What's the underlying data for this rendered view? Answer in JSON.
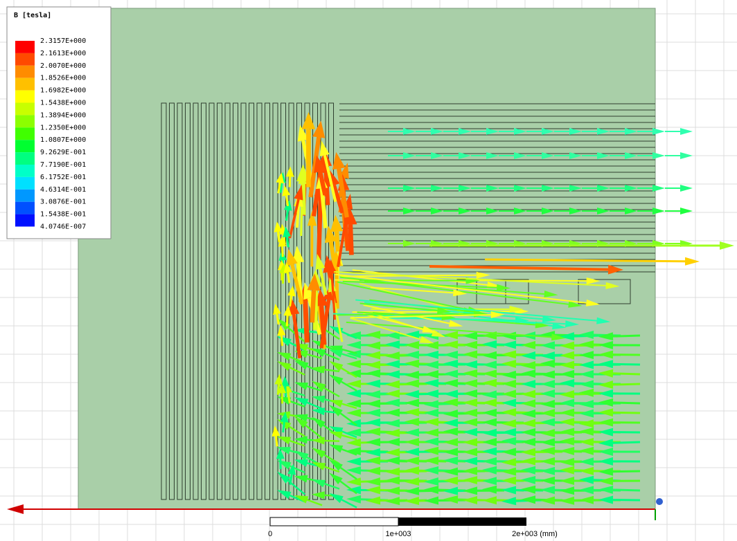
{
  "legend": {
    "title": "B [tesla]",
    "labels": [
      "2.3157E+000",
      "2.1613E+000",
      "2.0070E+000",
      "1.8526E+000",
      "1.6982E+000",
      "1.5438E+000",
      "1.3894E+000",
      "1.2350E+000",
      "1.0807E+000",
      "9.2629E-001",
      "7.7190E-001",
      "6.1752E-001",
      "4.6314E-001",
      "3.0876E-001",
      "1.5438E-001",
      "4.0746E-007"
    ],
    "swatches": [
      "#ff0000",
      "#ff4a00",
      "#ff8c00",
      "#ffc000",
      "#ffff00",
      "#c8ff00",
      "#8cff00",
      "#40ff00",
      "#00ff30",
      "#00ff80",
      "#00ffc8",
      "#00e0ff",
      "#0098ff",
      "#0050ff",
      "#0010ff"
    ]
  },
  "scale_bar": {
    "labels": [
      "0",
      "1e+003",
      "2e+003 (mm)"
    ]
  }
}
